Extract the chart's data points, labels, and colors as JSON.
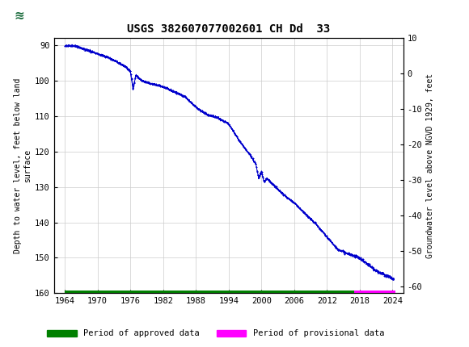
{
  "title": "USGS 382607077002601 CH Dd  33",
  "ylabel_left": "Depth to water level, feet below land\nsurface",
  "ylabel_right": "Groundwater level above NGVD 1929, feet",
  "ylim_left": [
    160,
    88
  ],
  "ylim_right_top": 10,
  "ylim_right_bottom": -62,
  "xlim": [
    1962,
    2026
  ],
  "xticks": [
    1964,
    1970,
    1976,
    1982,
    1988,
    1994,
    2000,
    2006,
    2012,
    2018,
    2024
  ],
  "yticks_left": [
    90,
    100,
    110,
    120,
    130,
    140,
    150,
    160
  ],
  "yticks_right": [
    10,
    0,
    -10,
    -20,
    -30,
    -40,
    -50,
    -60
  ],
  "header_color": "#1a6b3c",
  "data_color": "#0000cc",
  "approved_color": "#008000",
  "provisional_color": "#ff00ff",
  "legend_approved": "Period of approved data",
  "legend_provisional": "Period of provisional data",
  "grid_color": "#cccccc",
  "bg_color": "#ffffff"
}
